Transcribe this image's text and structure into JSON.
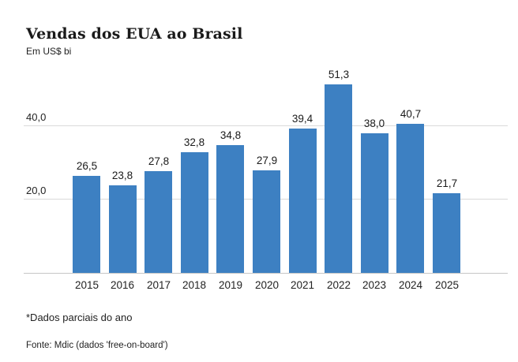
{
  "header": {
    "title": "Vendas dos EUA ao Brasil",
    "subtitle": "Em US$ bi"
  },
  "chart_data": {
    "type": "bar",
    "title": "Vendas dos EUA ao Brasil",
    "subtitle": "Em US$ bi",
    "categories": [
      "2015",
      "2016",
      "2017",
      "2018",
      "2019",
      "2020",
      "2021",
      "2022",
      "2023",
      "2024",
      "2025"
    ],
    "values": [
      26.5,
      23.8,
      27.8,
      32.8,
      34.8,
      27.9,
      39.4,
      51.3,
      38.0,
      40.7,
      21.7
    ],
    "value_labels": [
      "26,5",
      "23,8",
      "27,8",
      "32,8",
      "34,8",
      "27,9",
      "39,4",
      "51,3",
      "38,0",
      "40,7",
      "21,7"
    ],
    "y_ticks": [
      {
        "value": 20,
        "label": "20,0"
      },
      {
        "value": 40,
        "label": "40,0"
      }
    ],
    "ylim": [
      0,
      52.9
    ],
    "xlabel": "",
    "ylabel": "Em US$ bi",
    "grid": true,
    "legend": false,
    "bar_color": "#3d80c2",
    "gridline_color": "#d9d9d9",
    "axis_line_color": "#c6c6c6"
  },
  "footer": {
    "footnote": "*Dados parciais do ano",
    "source": "Fonte: Mdic (dados 'free-on-board')"
  }
}
